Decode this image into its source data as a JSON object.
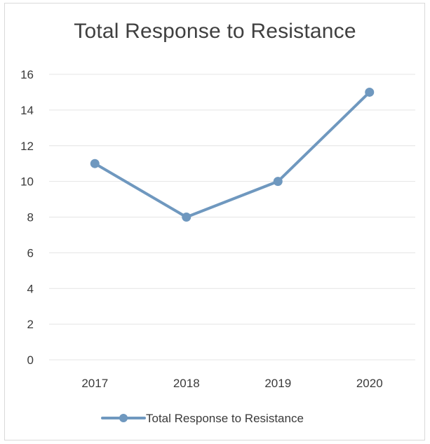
{
  "chart_data": {
    "type": "line",
    "title": "Total Response to Resistance",
    "xlabel": "",
    "ylabel": "",
    "categories": [
      "2017",
      "2018",
      "2019",
      "2020"
    ],
    "series": [
      {
        "name": "Total Response to Resistance",
        "values": [
          11,
          8,
          10,
          15
        ],
        "color": "#6f98bf"
      }
    ],
    "ylim": [
      0,
      16
    ],
    "yticks": [
      "0",
      "2",
      "4",
      "6",
      "8",
      "10",
      "12",
      "14",
      "16"
    ],
    "grid": true,
    "legend": "bottom"
  }
}
